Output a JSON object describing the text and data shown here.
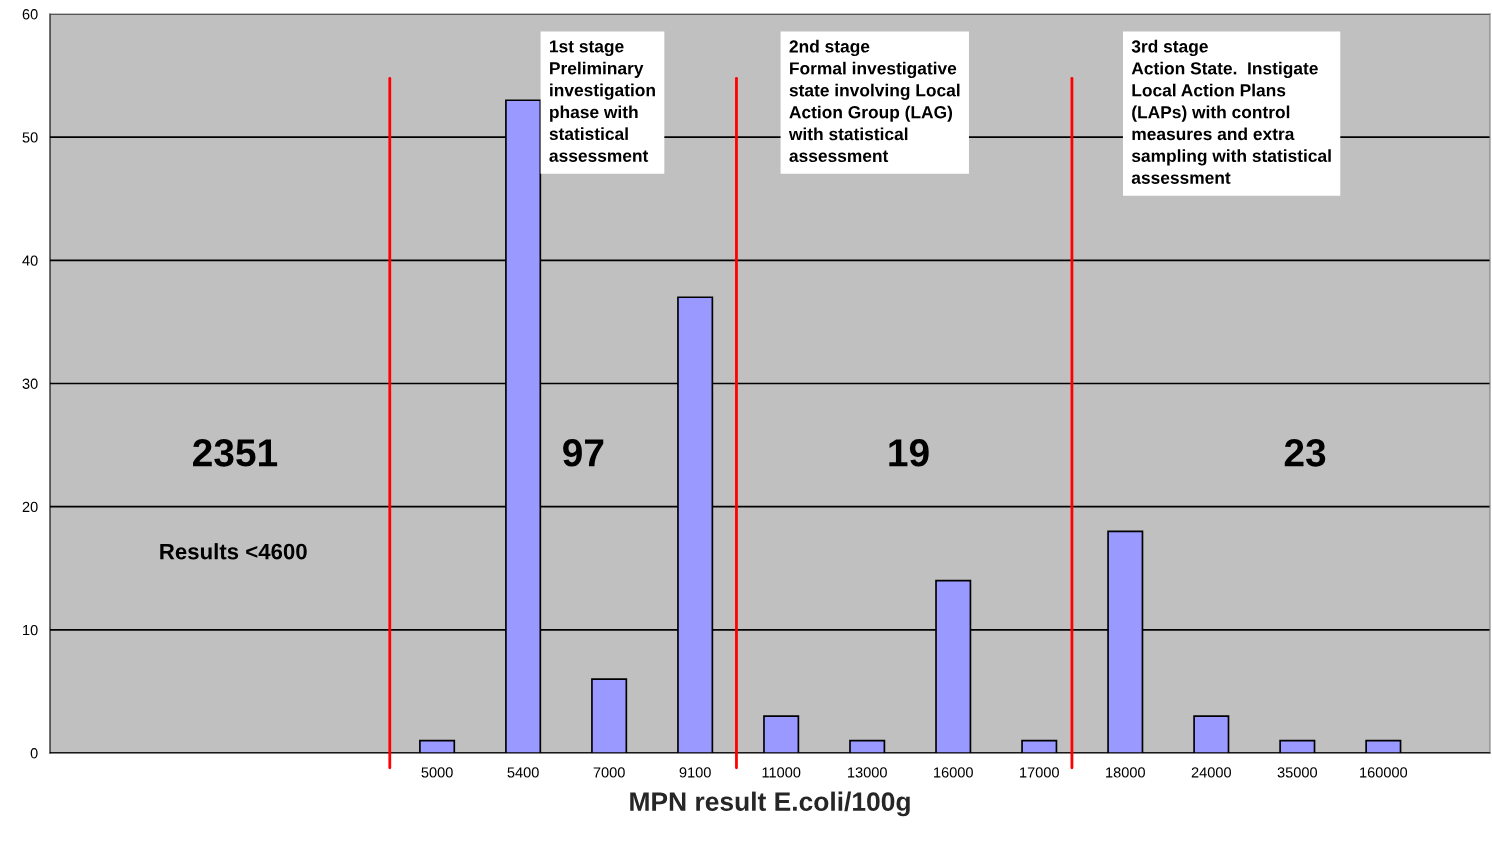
{
  "chart_data": {
    "type": "bar",
    "xlabel": "MPN result E.coli/100g",
    "categories": [
      null,
      null,
      null,
      null,
      "5000",
      "5400",
      "7000",
      "9100",
      "11000",
      "13000",
      "16000",
      "17000",
      "18000",
      "24000",
      "35000",
      "160000"
    ],
    "values": [
      null,
      null,
      null,
      null,
      1,
      53,
      6,
      37,
      3,
      1,
      14,
      1,
      18,
      3,
      1,
      1
    ],
    "color": "#9999ff",
    "ylim": [
      0,
      60
    ],
    "yticks": [
      0,
      10,
      20,
      30,
      40,
      50,
      60
    ],
    "grid": "y",
    "annotations": [
      "2351",
      "Results <4600",
      "97",
      "19",
      "23",
      "1st stage\nPreliminary\ninvestigation\nphase with\nstatistical\nassessment",
      "2nd stage\nFormal investigative\nstate involving Local\nAction Group (LAG)\nwith statistical\nassessment",
      "3rd stage\nAction State.  Instigate\nLocal Action Plans\n(LAPs) with control\nmeasures and extra\nsampling with statistical\nassessment"
    ]
  }
}
